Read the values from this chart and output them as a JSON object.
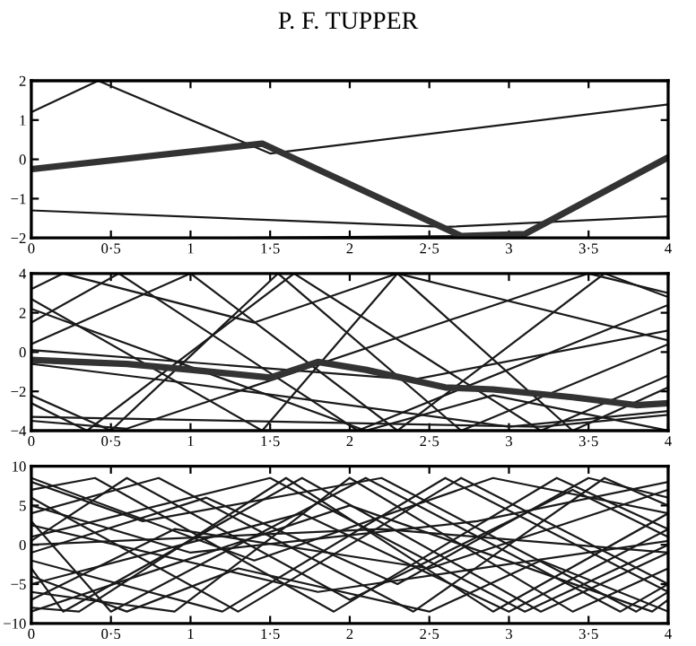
{
  "chart_data": [
    {
      "type": "line",
      "annotations": [
        "P. F. TUPPER"
      ],
      "xlim": [
        0,
        4
      ],
      "ylim": [
        -2,
        2
      ],
      "xticks": [
        0,
        {
          "value": 0.5,
          "label": "0·5"
        },
        1,
        {
          "value": 1.5,
          "label": "1·5"
        },
        2,
        {
          "value": 2.5,
          "label": "2·5"
        },
        3,
        {
          "value": 3.5,
          "label": "3·5"
        },
        4
      ],
      "yticks": [
        {
          "value": -2,
          "label": "−2"
        },
        {
          "value": -1,
          "label": "−1"
        },
        0,
        1,
        2
      ],
      "grid": false,
      "legend": false,
      "series": [
        {
          "color": "#1a1a1a",
          "x": [
            0,
            0.42,
            1.5,
            4
          ],
          "values": [
            1.2,
            2,
            0.15,
            1.4
          ]
        },
        {
          "color": "#1a1a1a",
          "x": [
            0,
            2.6,
            4
          ],
          "values": [
            -1.3,
            -1.72,
            -1.45
          ]
        },
        {
          "color": "#1a1a1a",
          "x": [
            1.1,
            2.7,
            3.1
          ],
          "values": [
            -2,
            -1.95,
            -2
          ]
        },
        {
          "color": "#333333",
          "x": [
            0,
            1.45,
            2.7,
            3.1,
            4
          ],
          "values": [
            -0.25,
            0.4,
            -1.95,
            -1.9,
            0.05
          ]
        }
      ]
    },
    {
      "type": "line",
      "xlim": [
        0,
        4
      ],
      "ylim": [
        -4,
        4
      ],
      "xticks": [
        0,
        {
          "value": 0.5,
          "label": "0·5"
        },
        1,
        {
          "value": 1.5,
          "label": "1·5"
        },
        2,
        {
          "value": 2.5,
          "label": "2·5"
        },
        3,
        {
          "value": 3.5,
          "label": "3·5"
        },
        4
      ],
      "yticks": [
        {
          "value": -4,
          "label": "−4"
        },
        {
          "value": -2,
          "label": "−2"
        },
        0,
        2,
        4
      ],
      "grid": false,
      "legend": false,
      "series": [
        {
          "color": "#1a1a1a",
          "x": [
            0,
            0.55,
            2.05,
            4
          ],
          "values": [
            1.5,
            4,
            -4,
            2.4
          ]
        },
        {
          "color": "#1a1a1a",
          "x": [
            0,
            1.45,
            2.3,
            4
          ],
          "values": [
            2.7,
            -4,
            4,
            0.6
          ]
        },
        {
          "color": "#1a1a1a",
          "x": [
            0,
            1.0,
            2.3,
            3.6,
            4
          ],
          "values": [
            0.4,
            4,
            -4,
            4,
            2.8
          ]
        },
        {
          "color": "#1a1a1a",
          "x": [
            0,
            0.35,
            1.65,
            3.2,
            4
          ],
          "values": [
            -2.6,
            -4,
            4,
            -4,
            -1.2
          ]
        },
        {
          "color": "#1a1a1a",
          "x": [
            0,
            0.5,
            1.55,
            2.7,
            4
          ],
          "values": [
            -2.2,
            -4,
            4,
            -4,
            0.4
          ]
        },
        {
          "color": "#1a1a1a",
          "x": [
            0,
            2.4,
            4
          ],
          "values": [
            0.1,
            -1.4,
            1.1
          ]
        },
        {
          "color": "#1a1a1a",
          "x": [
            0,
            0.9,
            3.0,
            4
          ],
          "values": [
            -0.6,
            -1.5,
            -3.8,
            -3.0
          ]
        },
        {
          "color": "#1a1a1a",
          "x": [
            0,
            3.2,
            4
          ],
          "values": [
            -3.3,
            -3.8,
            -3.2
          ]
        },
        {
          "color": "#1a1a1a",
          "x": [
            0,
            0.6,
            3.5,
            4
          ],
          "values": [
            -3.5,
            -3.9,
            4,
            3
          ]
        },
        {
          "color": "#1a1a1a",
          "x": [
            0,
            0.2,
            1.4,
            2.3,
            3.4,
            4
          ],
          "values": [
            3.2,
            4,
            1.5,
            4,
            -4,
            -1.8
          ]
        },
        {
          "color": "#1a1a1a",
          "x": [
            0,
            2.1,
            2.9,
            4
          ],
          "values": [
            2.2,
            -4,
            -2.2,
            -4
          ]
        },
        {
          "color": "#333333",
          "x": [
            0,
            0.6,
            1.0,
            1.5,
            1.8,
            2.1,
            2.6,
            2.9,
            3.4,
            3.8,
            4
          ],
          "values": [
            -0.4,
            -0.6,
            -0.9,
            -1.3,
            -0.5,
            -0.9,
            -1.8,
            -1.9,
            -2.3,
            -2.7,
            -2.6
          ]
        }
      ]
    },
    {
      "type": "line",
      "xlim": [
        0,
        4
      ],
      "ylim": [
        -10,
        10
      ],
      "xticks": [
        0,
        {
          "value": 0.5,
          "label": "0·5"
        },
        1,
        {
          "value": 1.5,
          "label": "1·5"
        },
        2,
        {
          "value": 2.5,
          "label": "2·5"
        },
        3,
        {
          "value": 3.5,
          "label": "3·5"
        },
        4
      ],
      "yticks": [
        {
          "value": -10,
          "label": "−10"
        },
        {
          "value": -5,
          "label": "−5"
        },
        0,
        5,
        10
      ],
      "grid": false,
      "legend": false,
      "series": [
        {
          "color": "#1a1a1a",
          "x": [
            0,
            0.8,
            2.4,
            3.6,
            4
          ],
          "values": [
            4,
            8.5,
            -8.5,
            8.5,
            5
          ]
        },
        {
          "color": "#1a1a1a",
          "x": [
            0,
            1.2,
            2.6,
            4
          ],
          "values": [
            -2,
            -8.5,
            8.5,
            -6
          ]
        },
        {
          "color": "#1a1a1a",
          "x": [
            0,
            0.4,
            1.9,
            3.3,
            4
          ],
          "values": [
            7,
            8.5,
            -8.5,
            8.5,
            2
          ]
        },
        {
          "color": "#1a1a1a",
          "x": [
            0,
            0.9,
            2.0,
            3.4,
            4
          ],
          "values": [
            -6,
            -8.5,
            8.5,
            -8.5,
            -3
          ]
        },
        {
          "color": "#1a1a1a",
          "x": [
            0,
            1.5,
            3.1,
            4
          ],
          "values": [
            1,
            8.5,
            -8.5,
            0
          ]
        },
        {
          "color": "#1a1a1a",
          "x": [
            0,
            0.3,
            1.6,
            2.9,
            4
          ],
          "values": [
            -8,
            -8.5,
            8.5,
            -8.5,
            4
          ]
        },
        {
          "color": "#1a1a1a",
          "x": [
            0,
            2.2,
            4
          ],
          "values": [
            0,
            2,
            -1
          ]
        },
        {
          "color": "#1a1a1a",
          "x": [
            0,
            1.0,
            2.8,
            4
          ],
          "values": [
            5,
            -1,
            3,
            8
          ]
        },
        {
          "color": "#1a1a1a",
          "x": [
            0,
            0.6,
            1.3,
            2.5,
            3.2,
            4
          ],
          "values": [
            -4,
            -8.5,
            -3,
            -8.5,
            -2,
            -8.5
          ]
        },
        {
          "color": "#1a1a1a",
          "x": [
            0,
            0.7,
            2.2,
            3.8,
            4
          ],
          "values": [
            8,
            3,
            8.5,
            -8.5,
            -6
          ]
        },
        {
          "color": "#1a1a1a",
          "x": [
            0,
            1.1,
            2.3,
            3.5,
            4
          ],
          "values": [
            -1,
            6,
            -5,
            8.5,
            6
          ]
        },
        {
          "color": "#1a1a1a",
          "x": [
            0,
            0.5,
            2.1,
            3.7,
            4
          ],
          "values": [
            3,
            -8.5,
            8.5,
            -8.5,
            -5
          ]
        },
        {
          "color": "#1a1a1a",
          "x": [
            0,
            1.7,
            3.0,
            4
          ],
          "values": [
            -5,
            4,
            -8.5,
            2
          ]
        },
        {
          "color": "#1a1a1a",
          "x": [
            0,
            1.3,
            2.7,
            4
          ],
          "values": [
            6,
            -8.5,
            8.5,
            -5
          ]
        },
        {
          "color": "#1a1a1a",
          "x": [
            0,
            0.9,
            2.5,
            4
          ],
          "values": [
            -7,
            2,
            -3,
            7
          ]
        },
        {
          "color": "#1a1a1a",
          "x": [
            0,
            1.8,
            4
          ],
          "values": [
            2.5,
            -6,
            0.5
          ]
        },
        {
          "color": "#1a1a1a",
          "x": [
            0,
            0.2,
            1.7,
            3.2,
            4
          ],
          "values": [
            -3,
            -8.5,
            8.5,
            -8.5,
            -1
          ]
        },
        {
          "color": "#1a1a1a",
          "x": [
            0,
            1.4,
            2.9,
            4
          ],
          "values": [
            8.5,
            -2,
            8.5,
            4
          ]
        },
        {
          "color": "#1a1a1a",
          "x": [
            0,
            2.0,
            3.9,
            4
          ],
          "values": [
            -8.5,
            5,
            -8.5,
            -7
          ]
        },
        {
          "color": "#1a1a1a",
          "x": [
            0,
            0.6,
            2.0,
            3.4,
            4
          ],
          "values": [
            0.5,
            8.5,
            -7,
            7,
            1
          ]
        }
      ]
    }
  ]
}
